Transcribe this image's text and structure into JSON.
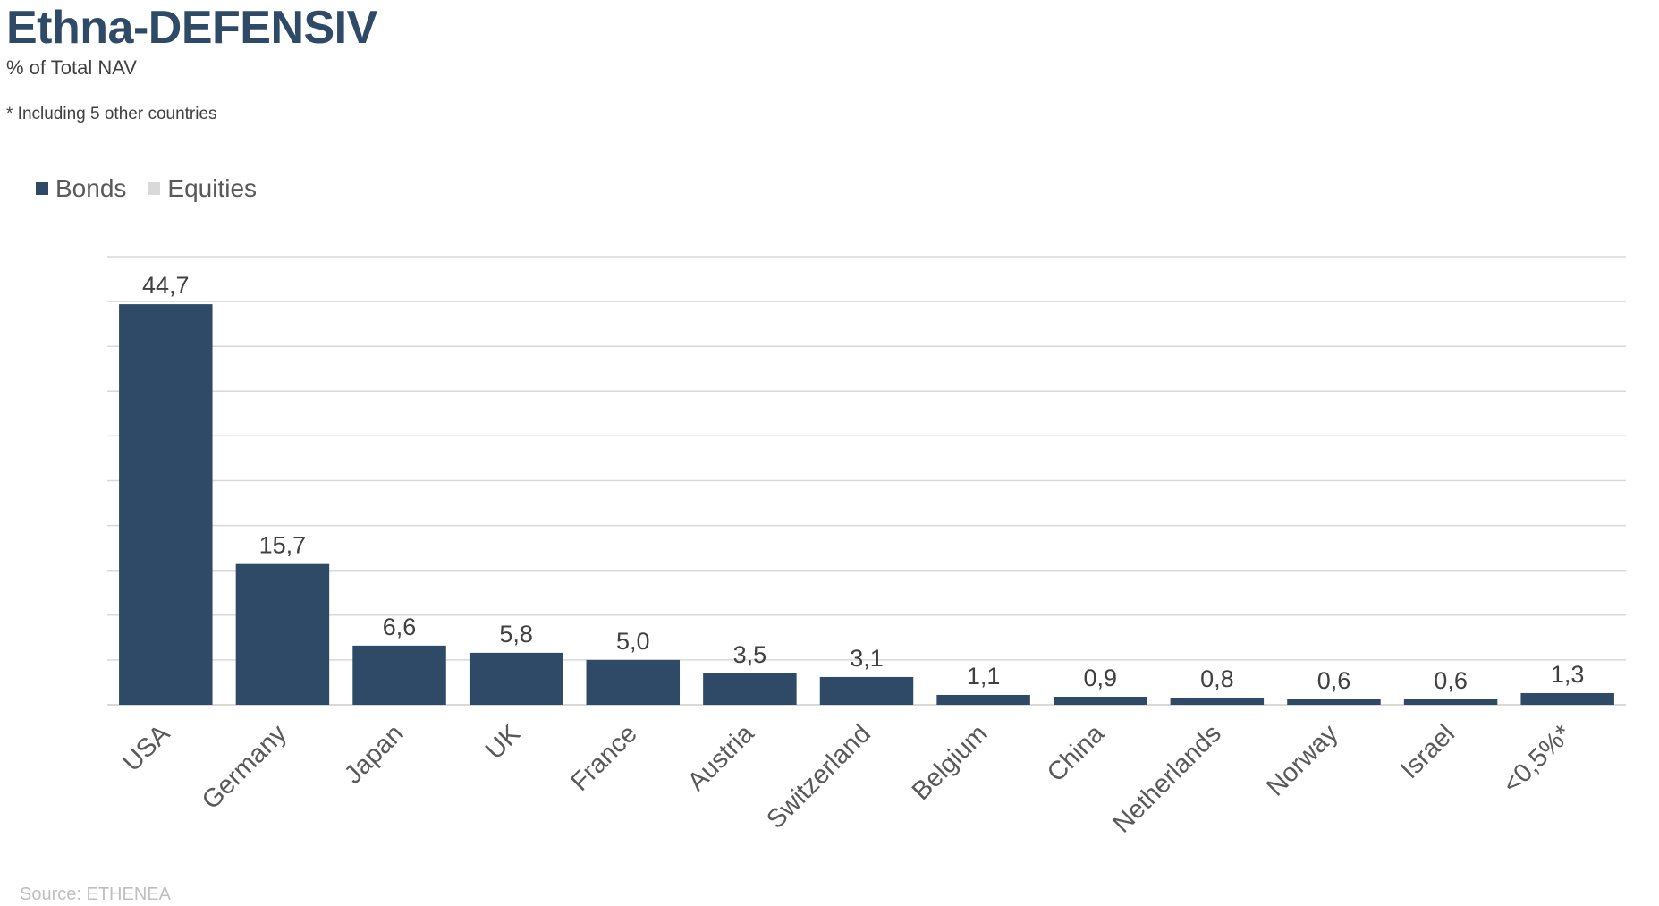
{
  "header": {
    "title": "Ethna-DEFENSIV",
    "subtitle": "% of Total NAV",
    "footnote": "* Including 5 other countries"
  },
  "footer": {
    "source": "Source: ETHENEA"
  },
  "colors": {
    "bonds": "#2f4a67",
    "equities": "#d9d9d9",
    "gridline": "#d9d9d9"
  },
  "chart_data": {
    "type": "bar",
    "title": "Ethna-DEFENSIV",
    "subtitle": "% of Total NAV",
    "categories": [
      "USA",
      "Germany",
      "Japan",
      "UK",
      "France",
      "Austria",
      "Switzerland",
      "Belgium",
      "China",
      "Netherlands",
      "Norway",
      "Israel",
      "<0,5%*"
    ],
    "series": [
      {
        "name": "Bonds",
        "color": "#2f4a67",
        "values": [
          44.7,
          15.7,
          6.6,
          5.8,
          5.0,
          3.5,
          3.1,
          1.1,
          0.9,
          0.8,
          0.6,
          0.6,
          1.3
        ]
      },
      {
        "name": "Equities",
        "color": "#d9d9d9",
        "values": [
          0,
          0,
          0,
          0,
          0,
          0,
          0,
          0,
          0,
          0,
          0,
          0,
          0
        ]
      }
    ],
    "data_labels": [
      "44,7",
      "15,7",
      "6,6",
      "5,8",
      "5,0",
      "3,5",
      "3,1",
      "1,1",
      "0,9",
      "0,8",
      "0,6",
      "0,6",
      "1,3"
    ],
    "ylim": [
      0,
      50
    ],
    "grid": true,
    "legend_position": "top-left",
    "stacked": true
  }
}
